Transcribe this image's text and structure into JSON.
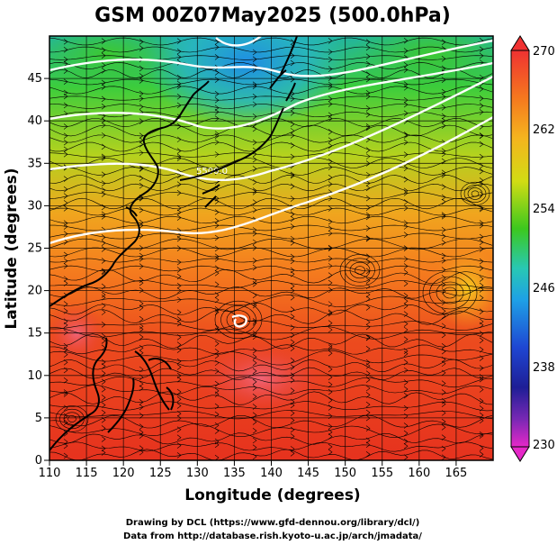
{
  "title": "GSM 00Z07May2025 (500.0hPa)",
  "xlabel": "Longitude (degrees)",
  "ylabel": "Latitude  (degrees)",
  "x_ticks": [
    "110",
    "115",
    "120",
    "125",
    "130",
    "135",
    "140",
    "145",
    "150",
    "155",
    "160",
    "165"
  ],
  "y_ticks": [
    "0",
    "5",
    "10",
    "15",
    "20",
    "25",
    "30",
    "35",
    "40",
    "45"
  ],
  "colorbar": {
    "ticks": [
      "270",
      "262",
      "254",
      "246",
      "238",
      "230"
    ],
    "min": 230,
    "max": 270
  },
  "contour_label": "5500.0",
  "credits": [
    "Drawing by DCL (https://www.gfd-dennou.org/library/dcl/)",
    "Data from http://database.rish.kyoto-u.ac.jp/arch/jmadata/"
  ],
  "map_extent": {
    "lon": [
      110,
      170
    ],
    "lat": [
      0,
      50
    ]
  },
  "colors": {
    "cold": "#1f9be6",
    "cool": "#37d2a0",
    "mid": "#3cc81e",
    "warm_yellow": "#d2dc14",
    "orange": "#f58c1e",
    "hot": "#e62d1e",
    "contour": "#ffffff",
    "coast": "#000000"
  }
}
